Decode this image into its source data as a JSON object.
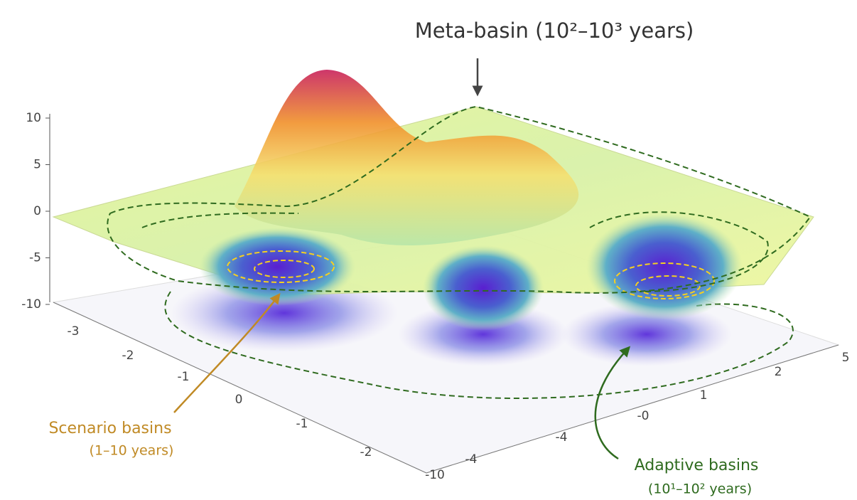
{
  "title": "Meta-basin (10²–10³ years)",
  "annotations": {
    "scenario": {
      "label": "Scenario basins",
      "range": "(1–10 years)"
    },
    "adaptive": {
      "label": "Adaptive basins",
      "range": "(10¹–10² years)"
    }
  },
  "axes": {
    "z": {
      "ticks": [
        10,
        5,
        0,
        -5,
        -10
      ]
    },
    "x": {
      "ticks": [
        "-3",
        "-2",
        "-1",
        "0",
        "-1",
        "-2"
      ]
    },
    "corner": "-10",
    "y": {
      "ticks": [
        "-4",
        "-4",
        "-0",
        "1",
        "2",
        "5"
      ]
    }
  }
}
